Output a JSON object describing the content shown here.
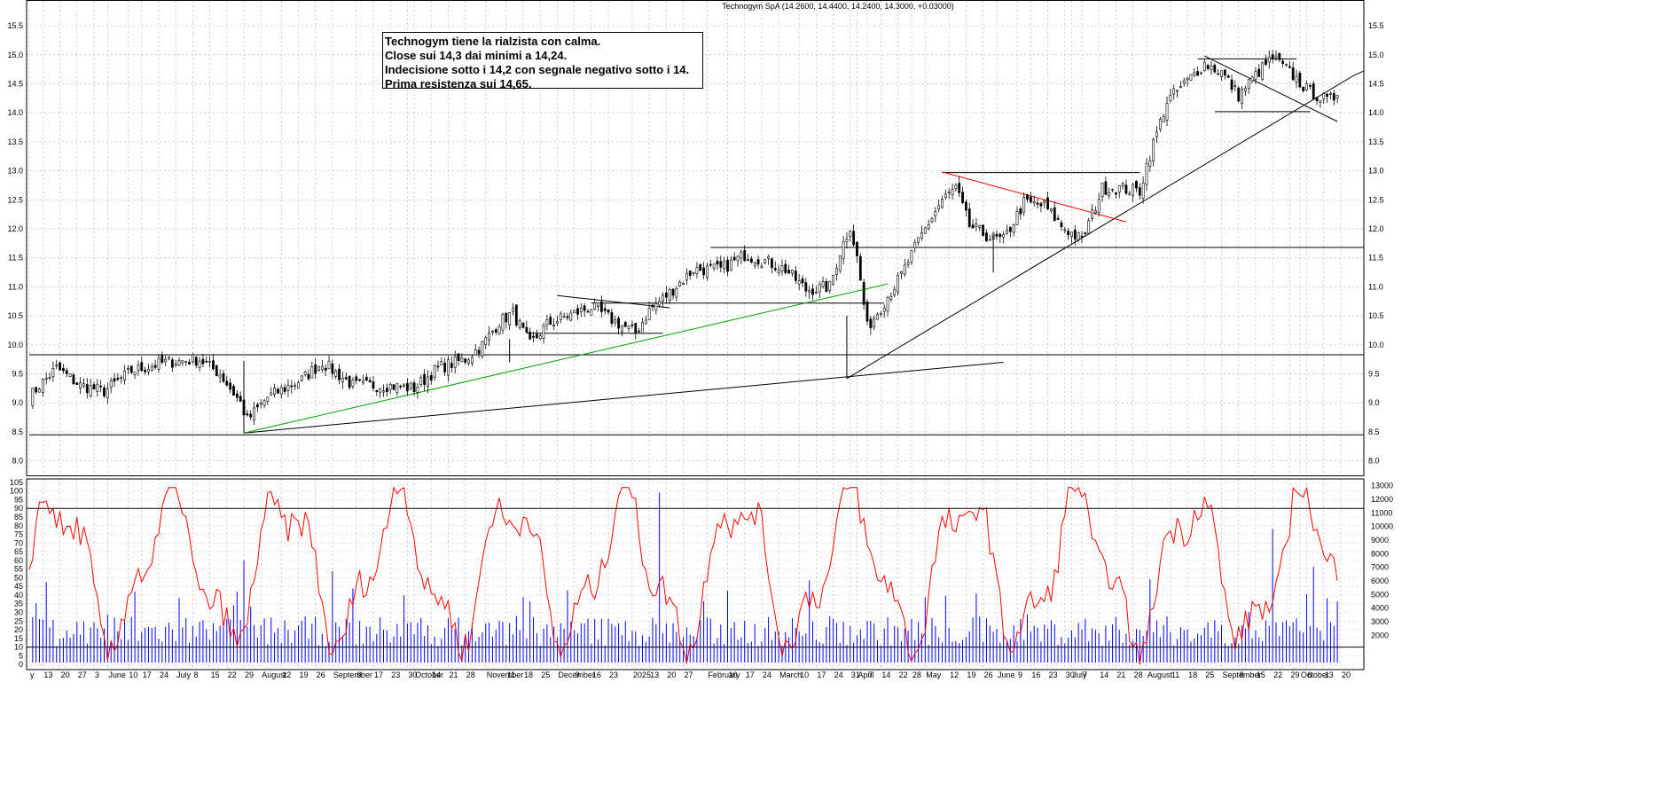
{
  "chart_data": {
    "title": "Technogym SpA (14.2600, 14.4400, 14.2400, 14.3000, +0.03000)",
    "annotation": [
      "Technogym tiene la rialzista con calma.",
      "Close sui 14,3 dai minimi a 14,24.",
      "Indecisione sotto i 14,2 con segnale negativo sotto i 14.",
      "Prima resistenza sui 14,65."
    ],
    "price_axis": {
      "ylim": [
        7.75,
        15.7
      ],
      "ticks": [
        "8.0",
        "8.5",
        "9.0",
        "9.5",
        "10.0",
        "10.5",
        "11.0",
        "11.5",
        "12.0",
        "12.5",
        "13.0",
        "13.5",
        "14.0",
        "14.5",
        "15.0",
        "15.5"
      ]
    },
    "oscillator_axis": {
      "ylim": [
        -3,
        107
      ],
      "ticks": [
        "0",
        "5",
        "10",
        "15",
        "20",
        "25",
        "30",
        "35",
        "40",
        "45",
        "50",
        "55",
        "60",
        "65",
        "70",
        "75",
        "80",
        "85",
        "90",
        "95",
        "100",
        "105"
      ]
    },
    "volume_axis": {
      "ylim": [
        0,
        13500
      ],
      "ticks": [
        "2000",
        "3000",
        "4000",
        "5000",
        "6000",
        "7000",
        "8000",
        "9000",
        "10000",
        "11000",
        "12000",
        "13000"
      ]
    },
    "date_labels": [
      {
        "t": "y",
        "i": 0
      },
      {
        "t": "13",
        "i": 4
      },
      {
        "t": "20",
        "i": 9
      },
      {
        "t": "27",
        "i": 14
      },
      {
        "t": "3",
        "i": 19
      },
      {
        "t": "June",
        "i": 23
      },
      {
        "t": "10",
        "i": 29
      },
      {
        "t": "17",
        "i": 33
      },
      {
        "t": "24",
        "i": 38
      },
      {
        "t": "July",
        "i": 43
      },
      {
        "t": "8",
        "i": 48
      },
      {
        "t": "15",
        "i": 53
      },
      {
        "t": "22",
        "i": 58
      },
      {
        "t": "29",
        "i": 63
      },
      {
        "t": "August",
        "i": 68
      },
      {
        "t": "12",
        "i": 74
      },
      {
        "t": "19",
        "i": 79
      },
      {
        "t": "26",
        "i": 84
      },
      {
        "t": "September",
        "i": 89
      },
      {
        "t": "9",
        "i": 96
      },
      {
        "t": "17",
        "i": 101
      },
      {
        "t": "23",
        "i": 106
      },
      {
        "t": "30",
        "i": 111
      },
      {
        "t": "October",
        "i": 113
      },
      {
        "t": "14",
        "i": 118
      },
      {
        "t": "21",
        "i": 123
      },
      {
        "t": "28",
        "i": 128
      },
      {
        "t": "November",
        "i": 134
      },
      {
        "t": "11",
        "i": 140
      },
      {
        "t": "18",
        "i": 145
      },
      {
        "t": "25",
        "i": 150
      },
      {
        "t": "December",
        "i": 155
      },
      {
        "t": "9",
        "i": 160
      },
      {
        "t": "16",
        "i": 165
      },
      {
        "t": "23",
        "i": 170
      },
      {
        "t": "2025",
        "i": 177
      },
      {
        "t": "13",
        "i": 182
      },
      {
        "t": "20",
        "i": 187
      },
      {
        "t": "27",
        "i": 192
      },
      {
        "t": "February",
        "i": 199
      },
      {
        "t": "10",
        "i": 205
      },
      {
        "t": "17",
        "i": 210
      },
      {
        "t": "24",
        "i": 215
      },
      {
        "t": "March",
        "i": 220
      },
      {
        "t": "10",
        "i": 226
      },
      {
        "t": "17",
        "i": 231
      },
      {
        "t": "24",
        "i": 236
      },
      {
        "t": "31",
        "i": 241
      },
      {
        "t": "April",
        "i": 243
      },
      {
        "t": "7",
        "i": 246
      },
      {
        "t": "14",
        "i": 250
      },
      {
        "t": "22",
        "i": 255
      },
      {
        "t": "28",
        "i": 259
      },
      {
        "t": "May",
        "i": 263
      },
      {
        "t": "12",
        "i": 270
      },
      {
        "t": "19",
        "i": 275
      },
      {
        "t": "26",
        "i": 280
      },
      {
        "t": "June",
        "i": 284
      },
      {
        "t": "9",
        "i": 290
      },
      {
        "t": "16",
        "i": 294
      },
      {
        "t": "23",
        "i": 299
      },
      {
        "t": "30",
        "i": 304
      },
      {
        "t": "July",
        "i": 306
      },
      {
        "t": "7",
        "i": 309
      },
      {
        "t": "14",
        "i": 314
      },
      {
        "t": "21",
        "i": 319
      },
      {
        "t": "28",
        "i": 324
      },
      {
        "t": "August",
        "i": 328
      },
      {
        "t": "11",
        "i": 335
      },
      {
        "t": "18",
        "i": 340
      },
      {
        "t": "25",
        "i": 345
      },
      {
        "t": "September",
        "i": 350
      },
      {
        "t": "8",
        "i": 355
      },
      {
        "t": "15",
        "i": 360
      },
      {
        "t": "22",
        "i": 365
      },
      {
        "t": "29",
        "i": 370
      },
      {
        "t": "October",
        "i": 373
      },
      {
        "t": "6",
        "i": 375
      },
      {
        "t": "13",
        "i": 380
      },
      {
        "t": "20",
        "i": 385
      }
    ],
    "overlays": {
      "support_line": {
        "price": 8.45,
        "from": 0,
        "to": 390
      },
      "breakout_line": {
        "price": 9.83,
        "from": 0,
        "to": 390
      },
      "range_line": {
        "price": 11.68,
        "from": 200,
        "to": 390
      },
      "top_line_1": {
        "price": 12.97,
        "from": 268,
        "to": 326
      },
      "top_line_2": {
        "price": 14.93,
        "from": 343,
        "to": 372
      },
      "bottom_line_2": {
        "price": 14.02,
        "from": 348,
        "to": 376
      },
      "box_line_1": {
        "price": 10.2,
        "from": 146,
        "to": 186
      },
      "box_line_2": {
        "price": 10.72,
        "from": 165,
        "to": 251
      },
      "long_trend": {
        "from": [
          63,
          8.48
        ],
        "to": [
          286,
          9.7
        ]
      },
      "green_trend": {
        "from": [
          63,
          8.48
        ],
        "to": [
          252,
          11.05
        ]
      },
      "main_trend": {
        "from": [
          240,
          9.42
        ],
        "to": [
          389,
          14.65
        ]
      },
      "triangle_top": {
        "from": [
          155,
          10.85
        ],
        "to": [
          188,
          10.64
        ]
      },
      "red_trend": {
        "from": [
          268,
          12.98
        ],
        "to": [
          322,
          12.12
        ]
      },
      "flag_top": {
        "from": [
          345,
          14.98
        ],
        "to": [
          384,
          13.85
        ]
      }
    },
    "grid": true,
    "volume_color": "#0000ff",
    "oscillator_color": "#ff0000"
  }
}
